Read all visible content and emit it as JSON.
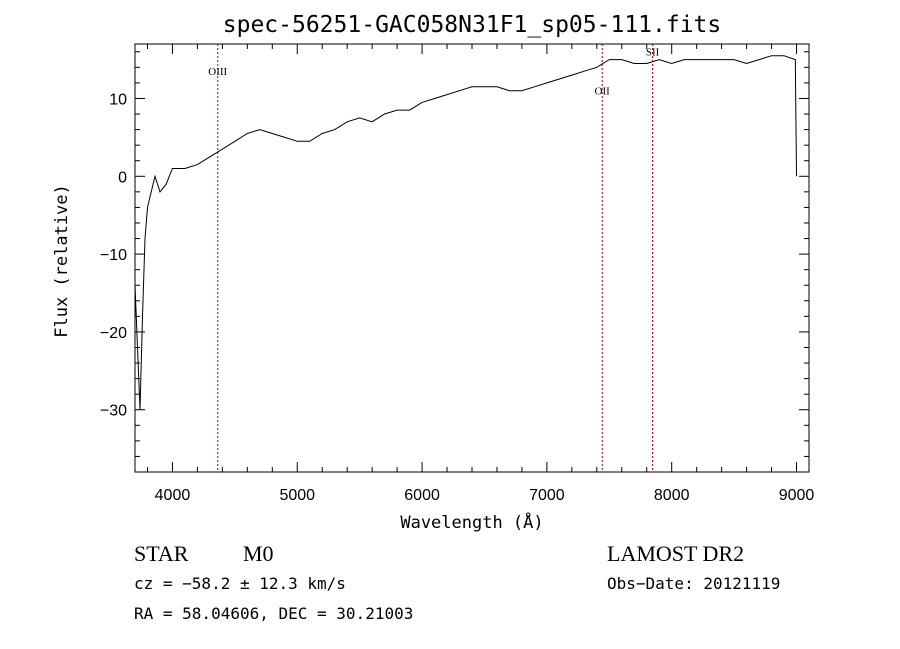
{
  "chart_data": {
    "type": "line",
    "title": "spec-56251-GAC058N31F1_sp05-111.fits",
    "xlabel": "Wavelength (Å)",
    "ylabel": "Flux (relative)",
    "xlim": [
      3700,
      9100
    ],
    "ylim": [
      -38,
      17
    ],
    "x_ticks": [
      4000,
      5000,
      6000,
      7000,
      8000,
      9000
    ],
    "y_ticks": [
      -30,
      -20,
      -10,
      0,
      10
    ],
    "x_tick_labels": [
      "4000",
      "5000",
      "6000",
      "7000",
      "8000",
      "9000"
    ],
    "y_tick_labels": [
      "−30",
      "−20",
      "−10",
      "0",
      "10"
    ],
    "line_color": "#000000",
    "marker_color": "#990000",
    "series": [
      {
        "x": [
          3700,
          3720,
          3740,
          3760,
          3780,
          3800,
          3830,
          3860,
          3900,
          3950,
          4000,
          4100,
          4200,
          4300,
          4400,
          4500,
          4600,
          4700,
          4800,
          4900,
          5000,
          5100,
          5200,
          5300,
          5400,
          5500,
          5600,
          5700,
          5800,
          5900,
          6000,
          6100,
          6200,
          6300,
          6400,
          6500,
          6600,
          6700,
          6800,
          6900,
          7000,
          7100,
          7200,
          7300,
          7400,
          7500,
          7600,
          7700,
          7800,
          7900,
          8000,
          8100,
          8200,
          8300,
          8400,
          8500,
          8600,
          8700,
          8800,
          8900,
          8990,
          9000
        ],
        "y": [
          -14,
          -22,
          -30,
          -18,
          -8,
          -4,
          -2,
          0,
          -2,
          -1,
          1,
          1,
          1.5,
          2.5,
          3.5,
          4.5,
          5.5,
          6,
          5.5,
          5,
          4.5,
          4.5,
          5.5,
          6,
          7,
          7.5,
          7,
          8,
          8.5,
          8.5,
          9.5,
          10,
          10.5,
          11,
          11.5,
          11.5,
          11.5,
          11,
          11,
          11.5,
          12,
          12.5,
          13,
          13.5,
          14,
          15,
          15,
          14.5,
          14.5,
          15,
          14.5,
          15,
          15,
          15,
          15,
          15,
          14.5,
          15,
          15.5,
          15.5,
          15,
          0
        ]
      }
    ],
    "markers": [
      {
        "label": "OIII",
        "x": 4363,
        "label_y": 13
      },
      {
        "label": "OII",
        "x": 7443,
        "label_y": 10.5
      },
      {
        "label": "SII",
        "x": 7847,
        "label_y": 15.5
      }
    ]
  },
  "annotations": {
    "class": "STAR",
    "subclass": "M0",
    "survey": "LAMOST DR2",
    "velocity": "cz = −58.2 ± 12.3 km/s",
    "obs_date": "Obs−Date: 20121119",
    "coords": "RA =  58.04606, DEC =  30.21003"
  }
}
